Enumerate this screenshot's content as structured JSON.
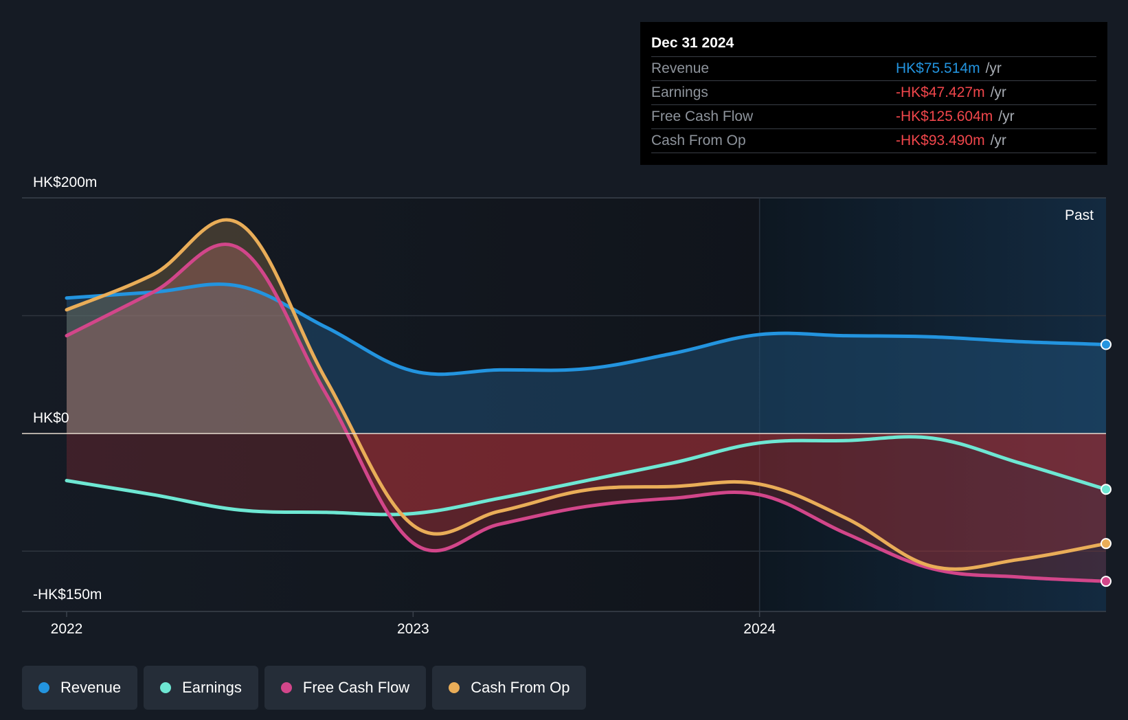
{
  "chart_data": {
    "type": "area",
    "x": [
      2022.0,
      2022.25,
      2022.5,
      2022.75,
      2023.0,
      2023.25,
      2023.5,
      2023.75,
      2024.0,
      2024.25,
      2024.5,
      2024.75,
      2025.0
    ],
    "series": [
      {
        "name": "Revenue",
        "color": "#2394df",
        "values": [
          115,
          120,
          125,
          90,
          53,
          54,
          55,
          68,
          84,
          83,
          82,
          78,
          75.514
        ]
      },
      {
        "name": "Earnings",
        "color": "#6ee7d3",
        "values": [
          -40,
          -52,
          -65,
          -67,
          -68,
          -55,
          -40,
          -25,
          -8,
          -6,
          -4,
          -25,
          -47.427
        ]
      },
      {
        "name": "Free Cash Flow",
        "color": "#d2468a",
        "values": [
          83,
          120,
          157,
          33,
          -93,
          -77,
          -62,
          -55,
          -52,
          -85,
          -115,
          -122,
          -125.604
        ]
      },
      {
        "name": "Cash From Op",
        "color": "#e9ad58",
        "values": [
          105,
          135,
          178,
          45,
          -78,
          -66,
          -48,
          -45,
          -43,
          -72,
          -113,
          -107,
          -93.49
        ]
      }
    ],
    "y_tick_labels": [
      "HK$200m",
      "HK$0",
      "-HK$150m"
    ],
    "x_tick_labels": [
      "2022",
      "2023",
      "2024"
    ],
    "ylim": [
      -150,
      200
    ],
    "grid_values": [
      100,
      -100
    ],
    "past_label": "Past",
    "legend_position": "bottom-left"
  },
  "legend": [
    {
      "label": "Revenue",
      "color": "#2394df"
    },
    {
      "label": "Earnings",
      "color": "#6ee7d3"
    },
    {
      "label": "Free Cash Flow",
      "color": "#d2468a"
    },
    {
      "label": "Cash From Op",
      "color": "#e9ad58"
    }
  ],
  "tooltip": {
    "date": "Dec 31 2024",
    "rows": [
      {
        "label": "Revenue",
        "value": "HK$75.514m",
        "unit": "/yr",
        "color": "#2394df"
      },
      {
        "label": "Earnings",
        "value": "-HK$47.427m",
        "unit": "/yr",
        "color": "#f0464b"
      },
      {
        "label": "Free Cash Flow",
        "value": "-HK$125.604m",
        "unit": "/yr",
        "color": "#f0464b"
      },
      {
        "label": "Cash From Op",
        "value": "-HK$93.490m",
        "unit": "/yr",
        "color": "#f0464b"
      }
    ]
  }
}
